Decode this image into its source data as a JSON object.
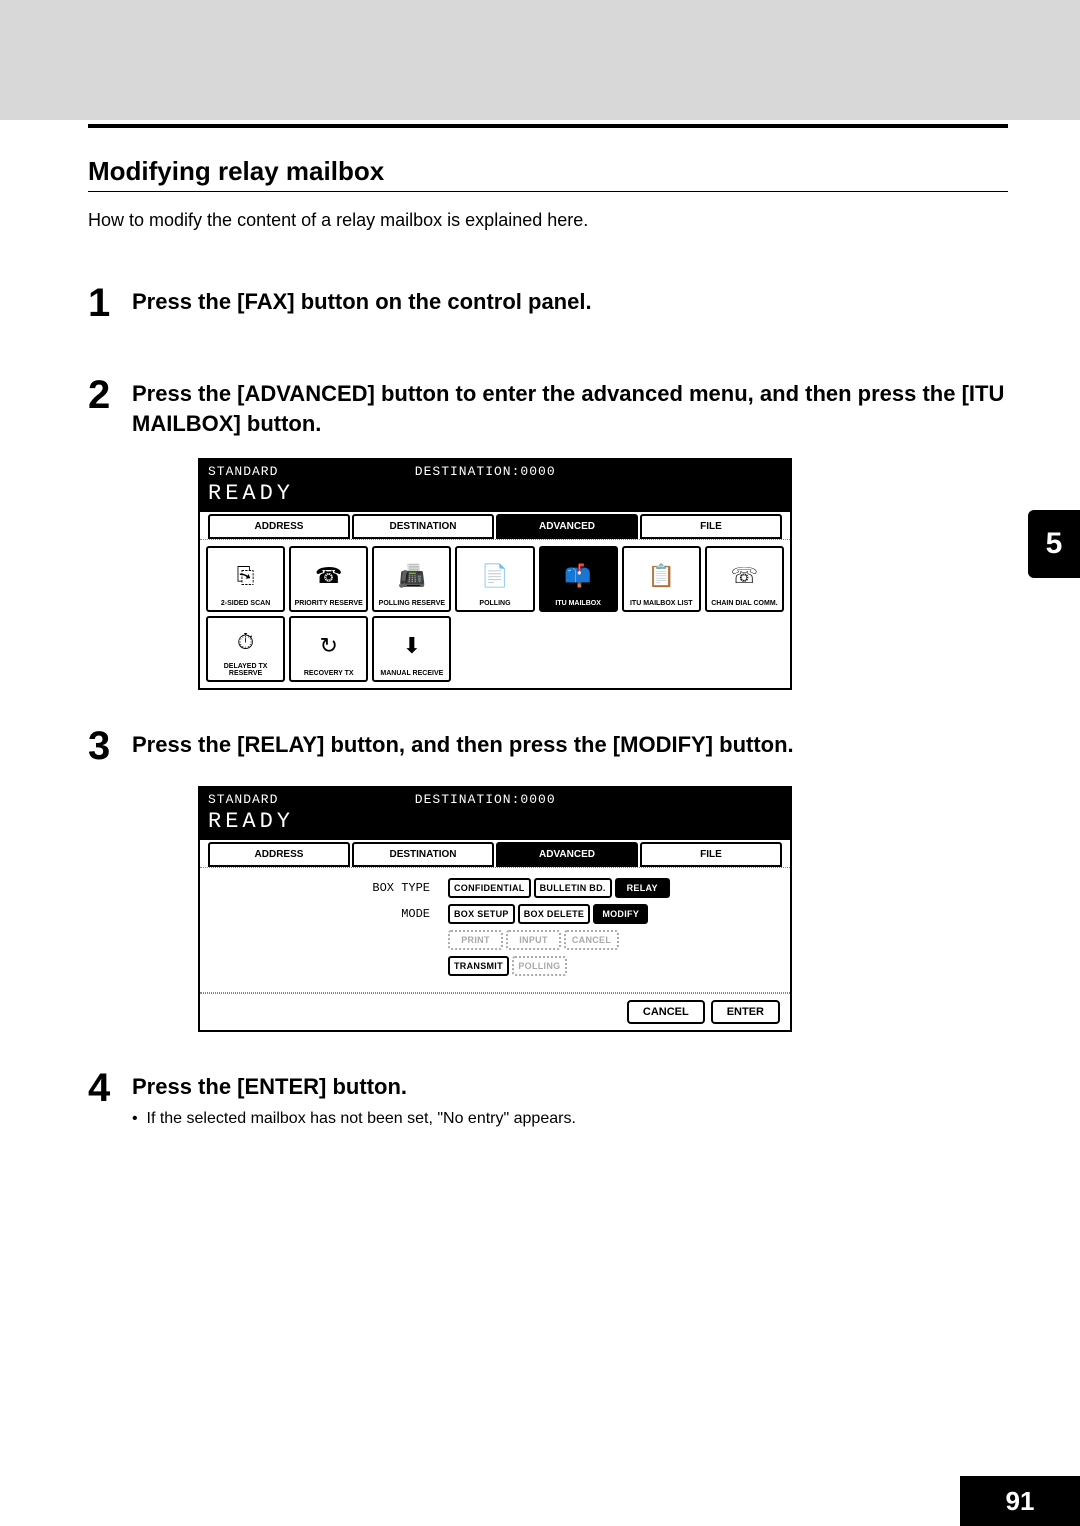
{
  "header": {
    "gray": true
  },
  "section": {
    "title": "Modifying relay mailbox",
    "desc": "How to modify the content of a relay mailbox is explained here."
  },
  "steps": [
    {
      "num": "1",
      "text": "Press the [FAX] button on the control panel."
    },
    {
      "num": "2",
      "text": "Press the [ADVANCED] button to enter the advanced menu, and then press the [ITU MAILBOX] button."
    },
    {
      "num": "3",
      "text": "Press the [RELAY] button, and then press the [MODIFY] button."
    },
    {
      "num": "4",
      "text": "Press the [ENTER] button.",
      "note": "If the selected mailbox has not been set, \"No entry\" appears."
    }
  ],
  "screen1": {
    "status_left": "STANDARD",
    "status_right": "DESTINATION:0000",
    "ready": "READY",
    "tabs": [
      "ADDRESS",
      "DESTINATION",
      "ADVANCED",
      "FILE"
    ],
    "active_tab": 2,
    "icons_row1": [
      {
        "label": "2-SIDED SCAN",
        "glyph": "⎘"
      },
      {
        "label": "PRIORITY RESERVE",
        "glyph": "☎"
      },
      {
        "label": "POLLING RESERVE",
        "glyph": "📠"
      },
      {
        "label": "POLLING",
        "glyph": "📄"
      },
      {
        "label": "ITU MAILBOX",
        "glyph": "📫",
        "selected": true
      },
      {
        "label": "ITU MAILBOX LIST",
        "glyph": "📋"
      },
      {
        "label": "CHAIN DIAL COMM.",
        "glyph": "☏"
      }
    ],
    "icons_row2": [
      {
        "label": "DELAYED TX RESERVE",
        "glyph": "⏱"
      },
      {
        "label": "RECOVERY TX",
        "glyph": "↻"
      },
      {
        "label": "MANUAL RECEIVE",
        "glyph": "⬇"
      },
      {
        "empty": true
      },
      {
        "empty": true
      },
      {
        "empty": true
      },
      {
        "empty": true
      }
    ]
  },
  "screen2": {
    "status_left": "STANDARD",
    "status_right": "DESTINATION:0000",
    "ready": "READY",
    "tabs": [
      "ADDRESS",
      "DESTINATION",
      "ADVANCED",
      "FILE"
    ],
    "active_tab": 2,
    "rows": [
      {
        "label": "BOX TYPE",
        "btns": [
          {
            "t": "CONFIDENTIAL"
          },
          {
            "t": "BULLETIN BD."
          },
          {
            "t": "RELAY",
            "sel": true
          }
        ]
      },
      {
        "label": "MODE",
        "btns": [
          {
            "t": "BOX SETUP"
          },
          {
            "t": "BOX DELETE"
          },
          {
            "t": "MODIFY",
            "sel": true
          }
        ]
      },
      {
        "label": "",
        "btns": [
          {
            "t": "PRINT",
            "dis": true
          },
          {
            "t": "INPUT",
            "dis": true
          },
          {
            "t": "CANCEL",
            "dis": true
          }
        ]
      },
      {
        "label": "",
        "btns": [
          {
            "t": "TRANSMIT"
          },
          {
            "t": "POLLING",
            "dis": true
          }
        ]
      }
    ],
    "footer": [
      "CANCEL",
      "ENTER"
    ]
  },
  "side_tab": "5",
  "page_num": "91"
}
